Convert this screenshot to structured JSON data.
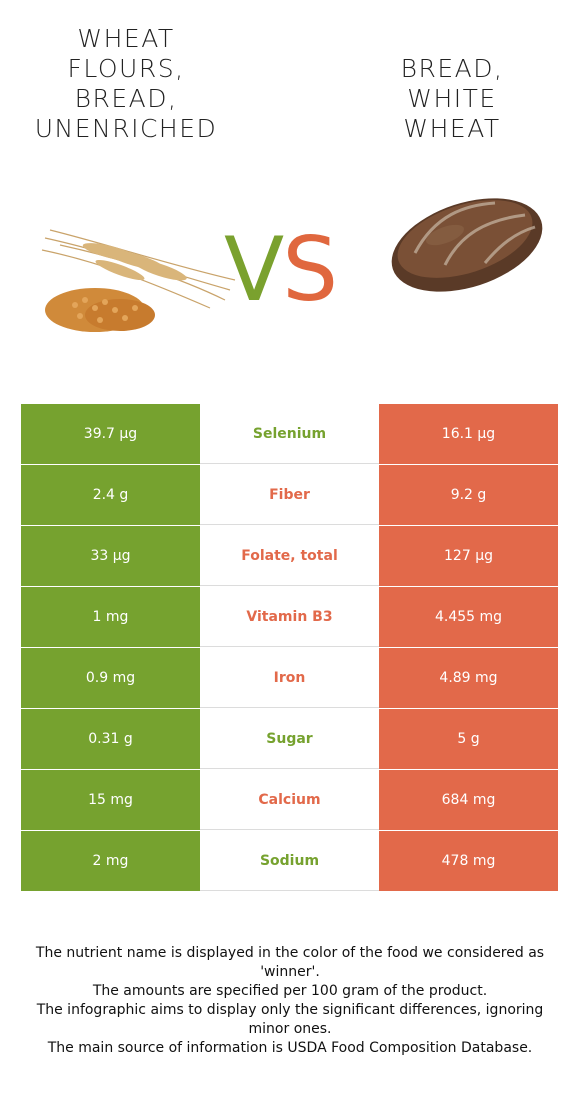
{
  "left_food": {
    "title": "WHEAT\nFLOURS,\nBREAD,\nUNENRICHED",
    "image": "wheat-image",
    "color": "#76a22f"
  },
  "right_food": {
    "title": "BREAD,\nWHITE\nWHEAT",
    "image": "bread-image",
    "color": "#e2694a"
  },
  "vs": {
    "v": "V",
    "s": "S"
  },
  "rows": [
    {
      "left": "39.7 µg",
      "nutrient": "Selenium",
      "right": "16.1 µg",
      "winner": "left"
    },
    {
      "left": "2.4 g",
      "nutrient": "Fiber",
      "right": "9.2 g",
      "winner": "right"
    },
    {
      "left": "33 µg",
      "nutrient": "Folate, total",
      "right": "127 µg",
      "winner": "right"
    },
    {
      "left": "1 mg",
      "nutrient": "Vitamin B3",
      "right": "4.455 mg",
      "winner": "right"
    },
    {
      "left": "0.9 mg",
      "nutrient": "Iron",
      "right": "4.89 mg",
      "winner": "right"
    },
    {
      "left": "0.31 g",
      "nutrient": "Sugar",
      "right": "5 g",
      "winner": "left"
    },
    {
      "left": "15 mg",
      "nutrient": "Calcium",
      "right": "684 mg",
      "winner": "right"
    },
    {
      "left": "2 mg",
      "nutrient": "Sodium",
      "right": "478 mg",
      "winner": "left"
    }
  ],
  "notes": [
    "The nutrient name is displayed in the color of the food we considered as 'winner'.",
    "The amounts are specified per 100 gram of the product.",
    "The infographic aims to display only the significant differences, ignoring minor ones.",
    "The main source of information is USDA Food Composition Database."
  ]
}
